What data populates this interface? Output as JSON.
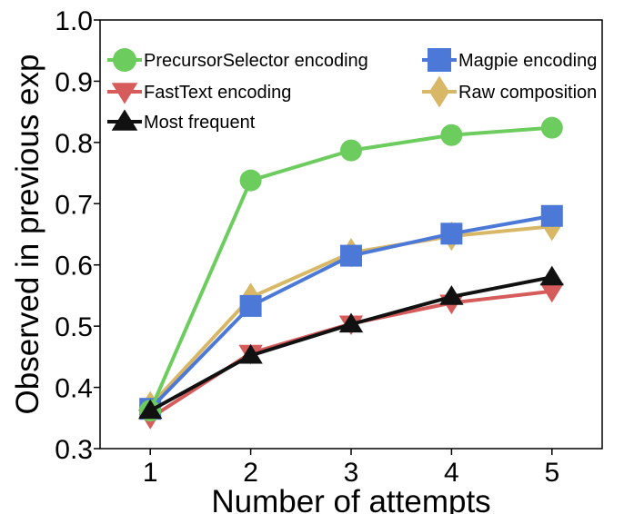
{
  "chart_data": {
    "type": "line",
    "xlabel": "Number of attempts",
    "ylabel": "Observed in previous exp",
    "x": [
      1,
      2,
      3,
      4,
      5
    ],
    "xticks": [
      "1",
      "2",
      "3",
      "4",
      "5"
    ],
    "xlim": [
      0.5,
      5.5
    ],
    "ylim": [
      0.3,
      1.0
    ],
    "yticks": [
      "0.3",
      "0.4",
      "0.5",
      "0.6",
      "0.7",
      "0.8",
      "0.9",
      "1.0"
    ],
    "grid": false,
    "legend_position": "top",
    "series": [
      {
        "name": "PrecursorSelector encoding",
        "color": "#6ccc5e",
        "marker": "circle",
        "values": [
          0.362,
          0.738,
          0.787,
          0.812,
          0.824
        ]
      },
      {
        "name": "Magpie encoding",
        "color": "#4c79d8",
        "marker": "square",
        "values": [
          0.365,
          0.533,
          0.615,
          0.651,
          0.68
        ]
      },
      {
        "name": "FastText encoding",
        "color": "#d65c5c",
        "marker": "triangle-down",
        "values": [
          0.35,
          0.456,
          0.504,
          0.538,
          0.557
        ]
      },
      {
        "name": "Raw composition",
        "color": "#d8b866",
        "marker": "diamond",
        "values": [
          0.37,
          0.547,
          0.62,
          0.647,
          0.663
        ]
      },
      {
        "name": "Most frequent",
        "color": "#111111",
        "marker": "triangle-up",
        "values": [
          0.362,
          0.452,
          0.503,
          0.548,
          0.58
        ]
      }
    ]
  }
}
